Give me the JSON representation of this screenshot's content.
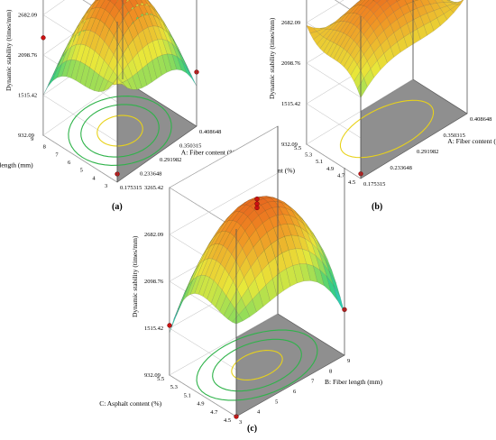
{
  "figure": {
    "colors": {
      "floor": "#8f8f8f",
      "box": "#555555",
      "contour_outer": "#2fb34a",
      "contour_inner": "#e8d21a",
      "design_point": "#cc1111",
      "colormap": [
        "#1f3fd0",
        "#20c8e6",
        "#3ad07a",
        "#e8e83a",
        "#f08c22",
        "#d82a1a"
      ]
    }
  },
  "chart_data": [
    {
      "type": "surface",
      "panel_label": "(a)",
      "zlabel": "Dynamic stability (times/mm)",
      "xlabel": "A: Fiber content (%)",
      "ylabel": "B: Fiber length (mm)",
      "xticks": [
        "0.175315",
        "0.233648",
        "0.291982",
        "0.350315",
        "0.408648"
      ],
      "xtick_values": [
        0.175315,
        0.233648,
        0.291982,
        0.350315,
        0.408648
      ],
      "yticks": [
        "3",
        "4",
        "5",
        "6",
        "7",
        "8",
        "9"
      ],
      "ytick_values": [
        3,
        4,
        5,
        6,
        7,
        8,
        9
      ],
      "zticks": [
        "932.09",
        "1515.42",
        "2098.76",
        "2682.09",
        "3265.42"
      ],
      "zlim": [
        932.09,
        3265.42
      ],
      "surface": {
        "peak": 2980,
        "ridge": 1950,
        "c0": 3820,
        "curvature": 1900
      },
      "design_points": [
        {
          "x": 0.291982,
          "y": 6,
          "z": 3000
        },
        {
          "x": 0.291982,
          "y": 6,
          "z": 2950
        },
        {
          "x": 0.291982,
          "y": 6,
          "z": 2910
        },
        {
          "x": 0.175315,
          "y": 9,
          "z": 2350
        },
        {
          "x": 0.408648,
          "y": 3,
          "z": 1720
        },
        {
          "x": 0.175315,
          "y": 3,
          "z": 1050
        }
      ],
      "contours": {
        "center": [
          0.291982,
          6
        ],
        "levels": [
          0.95,
          0.72,
          0.42
        ]
      }
    },
    {
      "type": "surface",
      "panel_label": "(b)",
      "zlabel": "Dynamic stability (times/mm)",
      "xlabel": "A: Fiber content (%)",
      "ylabel": "C: Asphalt content (%)",
      "xticks": [
        "0.175315",
        "0.233648",
        "0.291982",
        "0.350315",
        "0.408648"
      ],
      "xtick_values": [
        0.175315,
        0.233648,
        0.291982,
        0.350315,
        0.408648
      ],
      "yticks": [
        "4.5",
        "4.7",
        "4.9",
        "5.1",
        "5.3",
        "5.5"
      ],
      "ytick_values": [
        4.5,
        4.7,
        4.9,
        5.1,
        5.3,
        5.5
      ],
      "zticks": [
        "932.09",
        "1515.42",
        "2098.76",
        "2682.09",
        "3265.42"
      ],
      "zlim": [
        932.09,
        3265.42
      ],
      "surface": {
        "peak": 2930,
        "ridge": 3400,
        "c0": 2300,
        "curvature": 1050
      },
      "design_points": [
        {
          "x": 0.291982,
          "y": 5,
          "z": 2980
        },
        {
          "x": 0.291982,
          "y": 5,
          "z": 2930
        },
        {
          "x": 0.291982,
          "y": 5,
          "z": 2890
        },
        {
          "x": 0.408648,
          "y": 5.5,
          "z": 2400
        },
        {
          "x": 0.175315,
          "y": 4.5,
          "z": 1000
        }
      ],
      "contours": {
        "center": [
          0.291982,
          5
        ],
        "levels": [
          0.78
        ]
      }
    },
    {
      "type": "surface",
      "panel_label": "(c)",
      "zlabel": "Dynamic stability (times/mm)",
      "xlabel": "B: Fiber length (mm)",
      "ylabel": "C: Asphalt content (%)",
      "xticks": [
        "3",
        "4",
        "5",
        "6",
        "7",
        "8",
        "9"
      ],
      "xtick_values": [
        3,
        4,
        5,
        6,
        7,
        8,
        9
      ],
      "yticks": [
        "4.5",
        "4.7",
        "4.9",
        "5.1",
        "5.3",
        "5.5"
      ],
      "ytick_values": [
        4.5,
        4.7,
        4.9,
        5.1,
        5.3,
        5.5
      ],
      "zticks": [
        "932.09",
        "1515.42",
        "2098.76",
        "2682.09",
        "3265.42"
      ],
      "zlim": [
        932.09,
        3265.42
      ],
      "surface": {
        "peak": 2970,
        "ridge": 1550,
        "c0": 2800,
        "curvature": 1600
      },
      "design_points": [
        {
          "x": 6,
          "y": 5,
          "z": 3000
        },
        {
          "x": 6,
          "y": 5,
          "z": 2940
        },
        {
          "x": 6,
          "y": 5,
          "z": 2890
        },
        {
          "x": 3,
          "y": 5.5,
          "z": 1550
        },
        {
          "x": 9,
          "y": 4.5,
          "z": 1500
        },
        {
          "x": 3,
          "y": 4.5,
          "z": 932
        }
      ],
      "contours": {
        "center": [
          6,
          5
        ],
        "levels": [
          0.95,
          0.7,
          0.4
        ]
      }
    }
  ]
}
